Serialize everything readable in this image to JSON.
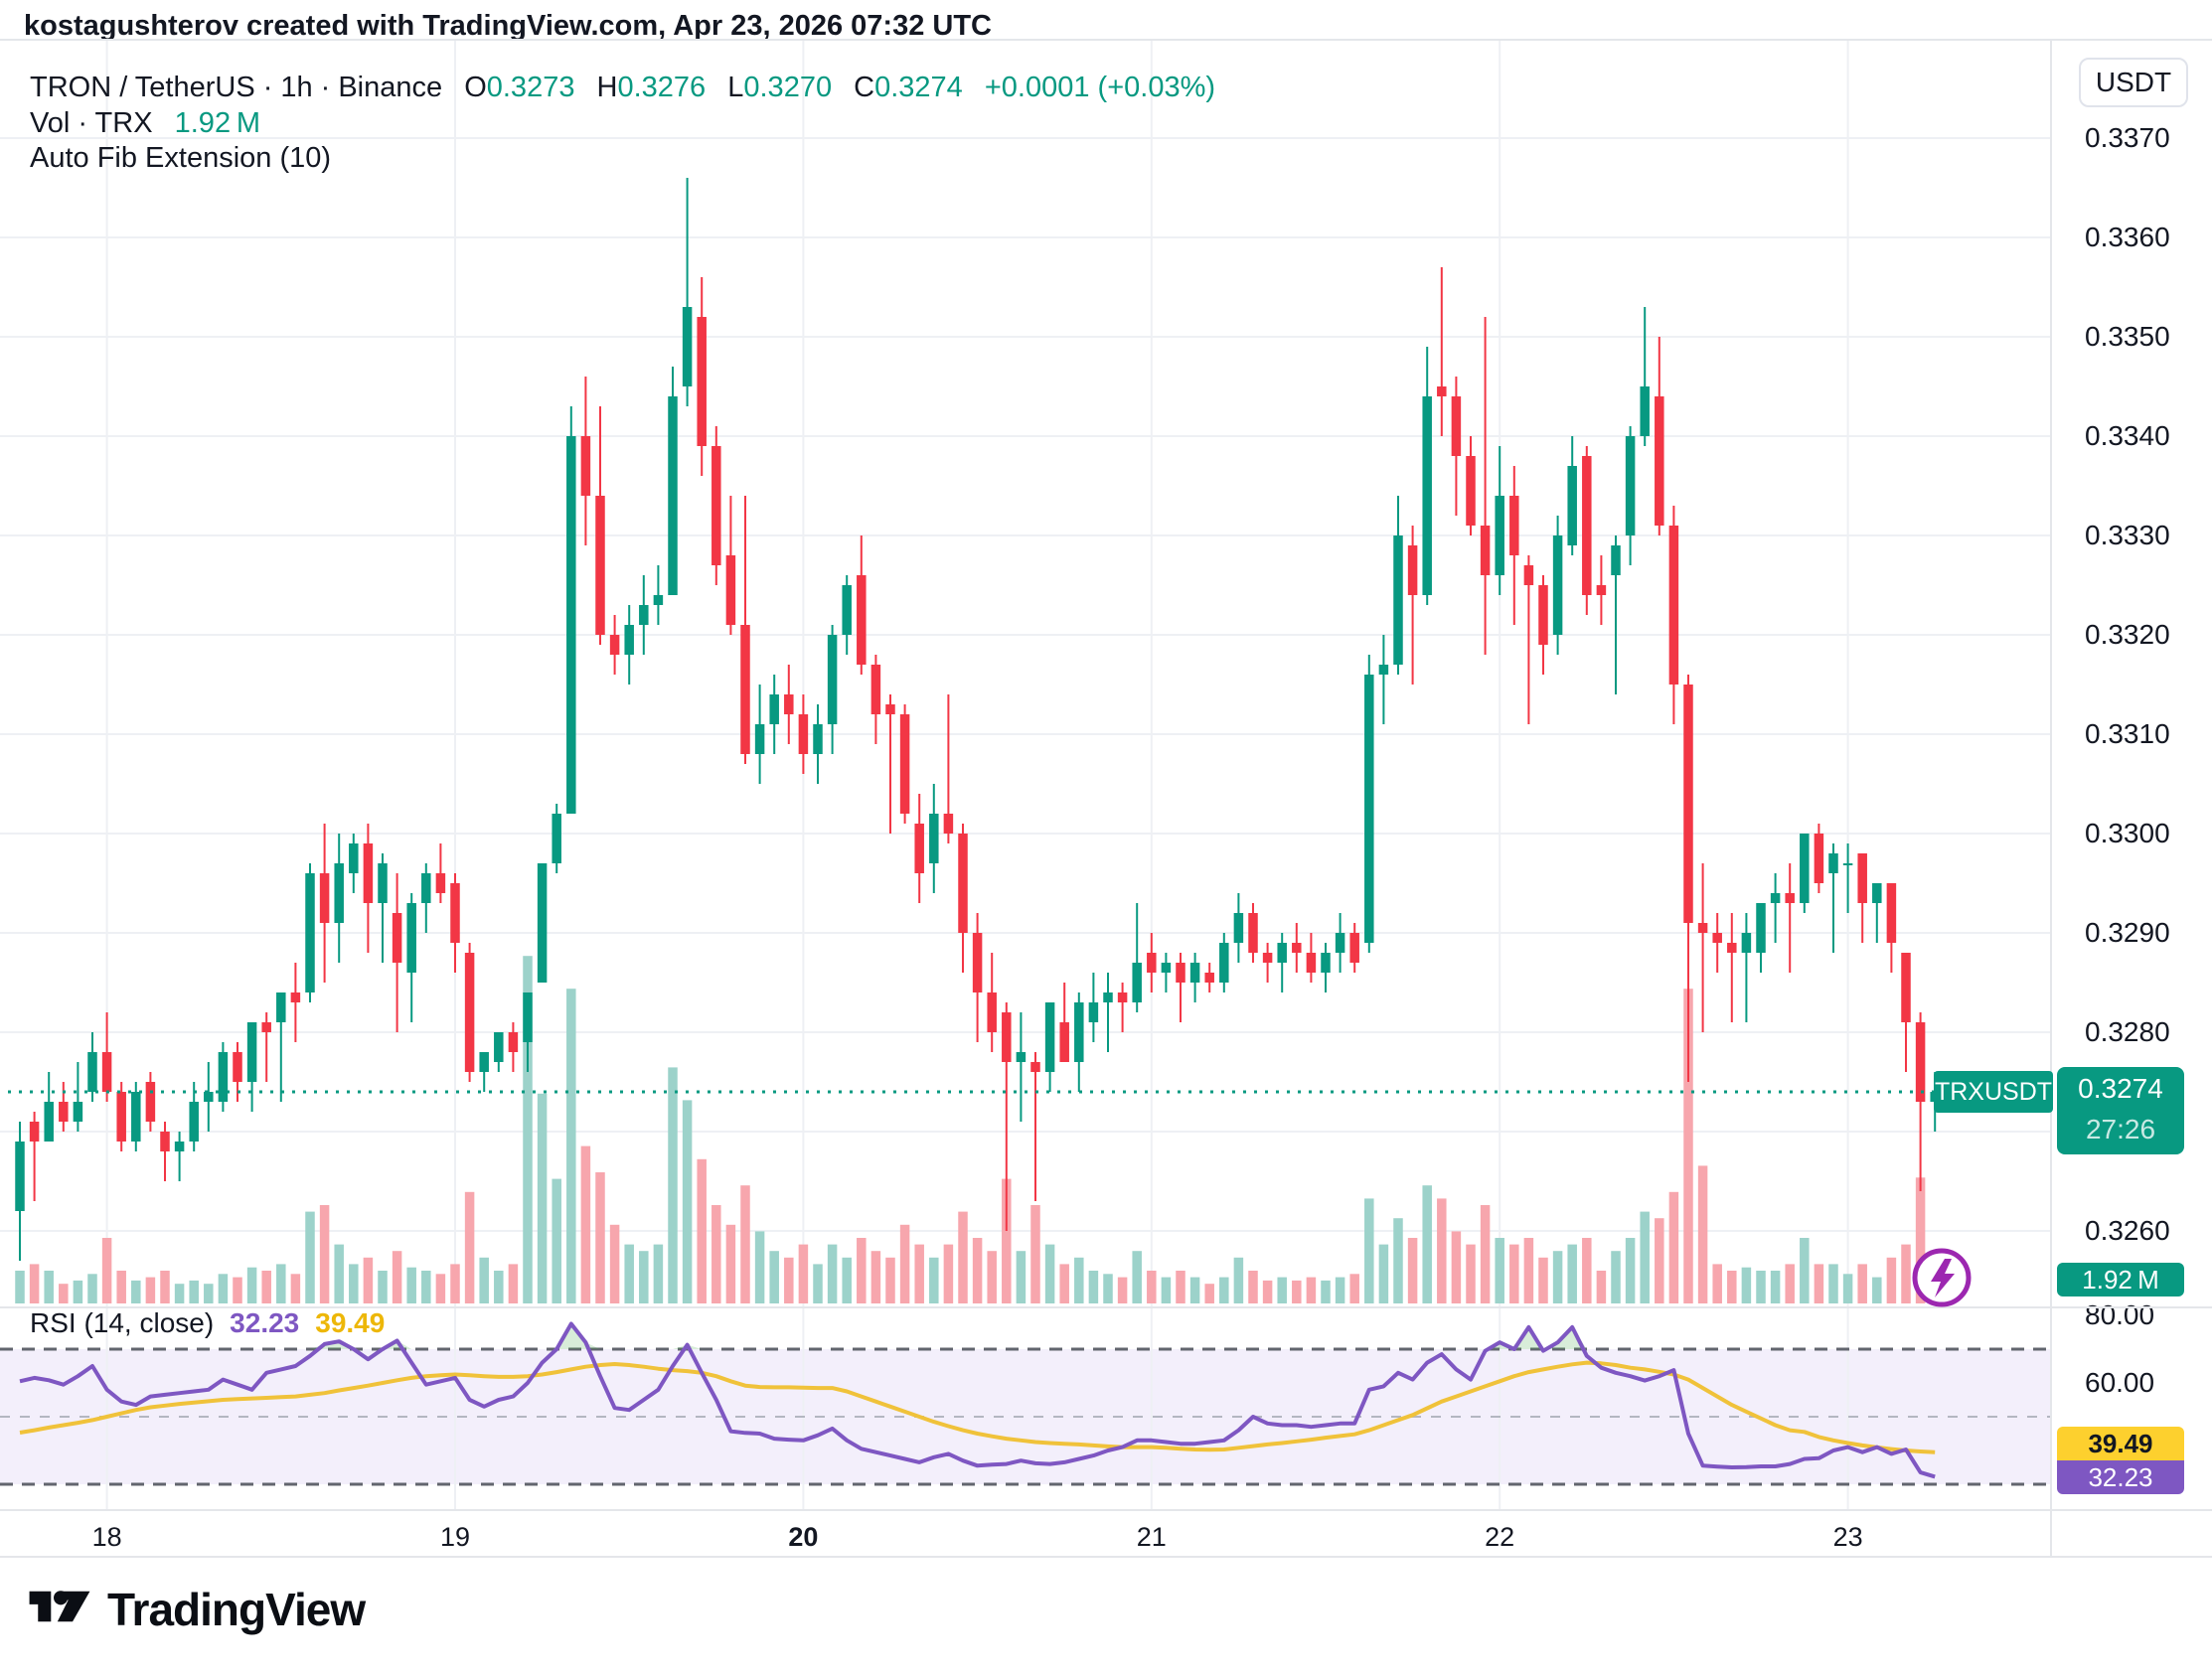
{
  "watermark": "kostagushterov created with TradingView.com, Apr 23, 2026 07:32 UTC",
  "header": {
    "symbol": "TRON / TetherUS",
    "sep": "·",
    "interval": "1h",
    "exchange": "Binance",
    "o_label": "O",
    "o": "0.3273",
    "h_label": "H",
    "h": "0.3276",
    "l_label": "L",
    "l": "0.3270",
    "c_label": "C",
    "c": "0.3274",
    "change": "+0.0001 (+0.03%)"
  },
  "volume_row": {
    "label": "Vol · TRX",
    "value": "1.92 M"
  },
  "fib_row": {
    "label": "Auto Fib Extension (10)"
  },
  "rsi_row": {
    "label": "RSI (14, close)",
    "rsi_value": "32.23",
    "ma_value": "39.49"
  },
  "price_axis": {
    "currency": "USDT",
    "ticks": [
      {
        "label": "0.3370",
        "value": 0.337
      },
      {
        "label": "0.3360",
        "value": 0.336
      },
      {
        "label": "0.3350",
        "value": 0.335
      },
      {
        "label": "0.3340",
        "value": 0.334
      },
      {
        "label": "0.3330",
        "value": 0.333
      },
      {
        "label": "0.3320",
        "value": 0.332
      },
      {
        "label": "0.3310",
        "value": 0.331
      },
      {
        "label": "0.3300",
        "value": 0.33
      },
      {
        "label": "0.3290",
        "value": 0.329
      },
      {
        "label": "0.3280",
        "value": 0.328
      },
      {
        "label": "0.3270",
        "value": 0.327
      },
      {
        "label": "0.3260",
        "value": 0.326
      }
    ],
    "rsi_ticks": [
      {
        "label": "80.00",
        "value": 80
      },
      {
        "label": "60.00",
        "value": 60
      }
    ],
    "price_badge": {
      "price": "0.3274",
      "countdown": "27:26"
    },
    "symbol_badge": "TRXUSDT",
    "volume_badge": "1.92 M",
    "rsi_ma_badge": "39.49",
    "rsi_badge": "32.23"
  },
  "time_axis": {
    "ticks": [
      {
        "label": "18",
        "index": 6,
        "bold": false
      },
      {
        "label": "19",
        "index": 30,
        "bold": false
      },
      {
        "label": "20",
        "index": 54,
        "bold": true
      },
      {
        "label": "21",
        "index": 78,
        "bold": false
      },
      {
        "label": "22",
        "index": 102,
        "bold": false
      },
      {
        "label": "23",
        "index": 126,
        "bold": false
      }
    ]
  },
  "branding": {
    "name": "TradingView"
  },
  "icons": {
    "lightning": "lightning-bolt",
    "logo_mark": "tradingview-mark"
  },
  "colors": {
    "up": "#089981",
    "down": "#f23645",
    "vol_up": "#9cd2ca",
    "vol_down": "#f7a6ad",
    "rsi_line": "#7e57c2",
    "rsi_ma_line": "#f0c23a",
    "badge_yellow": "#fdd02e",
    "badge_purple": "#7e57c2",
    "accent": "#089981",
    "text": "#131722",
    "grid": "#eef0f4",
    "separator": "#e4e6ea",
    "rsi_band": "#f3effb",
    "dash_strong": "#62656e",
    "dash_mid": "#b4b7c1",
    "overbought_fill": "rgba(76,175,80,0.22)"
  },
  "chart_data": {
    "type": "candlestick",
    "title": "TRON / TetherUS 1h Binance",
    "symbol": "TRXUSDT",
    "interval": "1h",
    "ylabel": "Price (USDT)",
    "ylim": [
      0.32527,
      0.33799
    ],
    "current_price": 0.3274,
    "volume_unit": "M TRX",
    "candles_format": [
      "open",
      "high",
      "low",
      "close",
      "volume_M"
    ],
    "candles": [
      [
        0.3262,
        0.3271,
        0.3257,
        0.3269,
        0.5
      ],
      [
        0.3271,
        0.3272,
        0.3263,
        0.3269,
        0.6
      ],
      [
        0.3269,
        0.3276,
        0.3269,
        0.3273,
        0.5
      ],
      [
        0.3273,
        0.3275,
        0.327,
        0.3271,
        0.3
      ],
      [
        0.3271,
        0.3277,
        0.327,
        0.3273,
        0.35
      ],
      [
        0.3274,
        0.328,
        0.3273,
        0.3278,
        0.45
      ],
      [
        0.3278,
        0.3282,
        0.3273,
        0.3274,
        1.0
      ],
      [
        0.3274,
        0.3275,
        0.3268,
        0.3269,
        0.5
      ],
      [
        0.3269,
        0.3275,
        0.3268,
        0.3274,
        0.35
      ],
      [
        0.3275,
        0.3276,
        0.327,
        0.3271,
        0.4
      ],
      [
        0.327,
        0.3271,
        0.3265,
        0.3268,
        0.5
      ],
      [
        0.3268,
        0.327,
        0.3265,
        0.3269,
        0.3
      ],
      [
        0.3269,
        0.3275,
        0.3268,
        0.3273,
        0.35
      ],
      [
        0.3273,
        0.3277,
        0.327,
        0.3274,
        0.3
      ],
      [
        0.3273,
        0.3279,
        0.3272,
        0.3278,
        0.45
      ],
      [
        0.3278,
        0.3279,
        0.3273,
        0.3275,
        0.4
      ],
      [
        0.3275,
        0.3281,
        0.3272,
        0.3281,
        0.55
      ],
      [
        0.3281,
        0.3282,
        0.3275,
        0.328,
        0.5
      ],
      [
        0.3281,
        0.3284,
        0.3273,
        0.3284,
        0.6
      ],
      [
        0.3284,
        0.3287,
        0.3279,
        0.3283,
        0.45
      ],
      [
        0.3284,
        0.3297,
        0.3283,
        0.3296,
        1.4
      ],
      [
        0.3296,
        0.3301,
        0.3285,
        0.3291,
        1.5
      ],
      [
        0.3291,
        0.33,
        0.3287,
        0.3297,
        0.9
      ],
      [
        0.3296,
        0.33,
        0.3294,
        0.3299,
        0.6
      ],
      [
        0.3299,
        0.3301,
        0.3288,
        0.3293,
        0.7
      ],
      [
        0.3293,
        0.3298,
        0.3287,
        0.3297,
        0.5
      ],
      [
        0.3292,
        0.3296,
        0.328,
        0.3287,
        0.8
      ],
      [
        0.3286,
        0.3294,
        0.3281,
        0.3293,
        0.55
      ],
      [
        0.3293,
        0.3297,
        0.329,
        0.3296,
        0.5
      ],
      [
        0.3296,
        0.3299,
        0.3293,
        0.3294,
        0.45
      ],
      [
        0.3295,
        0.3296,
        0.3286,
        0.3289,
        0.6
      ],
      [
        0.3288,
        0.3289,
        0.3275,
        0.3276,
        1.7
      ],
      [
        0.3276,
        0.3278,
        0.3274,
        0.3278,
        0.7
      ],
      [
        0.3277,
        0.328,
        0.3276,
        0.328,
        0.5
      ],
      [
        0.328,
        0.3281,
        0.3276,
        0.3278,
        0.6
      ],
      [
        0.3279,
        0.3284,
        0.3276,
        0.3284,
        5.3
      ],
      [
        0.3285,
        0.3297,
        0.3285,
        0.3297,
        3.2
      ],
      [
        0.3297,
        0.3303,
        0.3296,
        0.3302,
        1.9
      ],
      [
        0.3302,
        0.3343,
        0.3302,
        0.334,
        4.8
      ],
      [
        0.334,
        0.3346,
        0.3329,
        0.3334,
        2.4
      ],
      [
        0.3334,
        0.3343,
        0.3319,
        0.332,
        2.0
      ],
      [
        0.332,
        0.3322,
        0.3316,
        0.3318,
        1.2
      ],
      [
        0.3318,
        0.3323,
        0.3315,
        0.3321,
        0.9
      ],
      [
        0.3321,
        0.3326,
        0.3318,
        0.3323,
        0.8
      ],
      [
        0.3323,
        0.3327,
        0.3321,
        0.3324,
        0.9
      ],
      [
        0.3324,
        0.3347,
        0.3324,
        0.3344,
        3.6
      ],
      [
        0.3345,
        0.3366,
        0.3343,
        0.3353,
        3.1
      ],
      [
        0.3352,
        0.3356,
        0.3336,
        0.3339,
        2.2
      ],
      [
        0.3339,
        0.3341,
        0.3325,
        0.3327,
        1.5
      ],
      [
        0.3328,
        0.3334,
        0.332,
        0.3321,
        1.2
      ],
      [
        0.3321,
        0.3334,
        0.3307,
        0.3308,
        1.8
      ],
      [
        0.3308,
        0.3315,
        0.3305,
        0.3311,
        1.1
      ],
      [
        0.3311,
        0.3316,
        0.3308,
        0.3314,
        0.8
      ],
      [
        0.3314,
        0.3317,
        0.3309,
        0.3312,
        0.7
      ],
      [
        0.3312,
        0.3314,
        0.3306,
        0.3308,
        0.9
      ],
      [
        0.3308,
        0.3313,
        0.3305,
        0.3311,
        0.6
      ],
      [
        0.3311,
        0.3321,
        0.3308,
        0.332,
        0.9
      ],
      [
        0.332,
        0.3326,
        0.3318,
        0.3325,
        0.7
      ],
      [
        0.3326,
        0.333,
        0.3316,
        0.3317,
        1.0
      ],
      [
        0.3317,
        0.3318,
        0.3309,
        0.3312,
        0.8
      ],
      [
        0.3313,
        0.3314,
        0.33,
        0.3312,
        0.7
      ],
      [
        0.3312,
        0.3313,
        0.3301,
        0.3302,
        1.2
      ],
      [
        0.3301,
        0.3304,
        0.3293,
        0.3296,
        0.9
      ],
      [
        0.3297,
        0.3305,
        0.3294,
        0.3302,
        0.7
      ],
      [
        0.3302,
        0.3314,
        0.3299,
        0.33,
        0.9
      ],
      [
        0.33,
        0.3301,
        0.3286,
        0.329,
        1.4
      ],
      [
        0.329,
        0.3292,
        0.3279,
        0.3284,
        1.0
      ],
      [
        0.3284,
        0.3288,
        0.3278,
        0.328,
        0.8
      ],
      [
        0.3282,
        0.3283,
        0.326,
        0.3277,
        1.9
      ],
      [
        0.3277,
        0.3282,
        0.3271,
        0.3278,
        0.8
      ],
      [
        0.3277,
        0.3278,
        0.3263,
        0.3276,
        1.5
      ],
      [
        0.3276,
        0.3283,
        0.3274,
        0.3283,
        0.9
      ],
      [
        0.3281,
        0.3285,
        0.3277,
        0.3277,
        0.6
      ],
      [
        0.3277,
        0.3284,
        0.3274,
        0.3283,
        0.7
      ],
      [
        0.3281,
        0.3286,
        0.3279,
        0.3283,
        0.5
      ],
      [
        0.3283,
        0.3286,
        0.3278,
        0.3284,
        0.45
      ],
      [
        0.3284,
        0.3285,
        0.328,
        0.3283,
        0.4
      ],
      [
        0.3283,
        0.3293,
        0.3282,
        0.3287,
        0.8
      ],
      [
        0.3288,
        0.329,
        0.3284,
        0.3286,
        0.5
      ],
      [
        0.3286,
        0.3288,
        0.3284,
        0.3287,
        0.4
      ],
      [
        0.3287,
        0.3288,
        0.3281,
        0.3285,
        0.5
      ],
      [
        0.3285,
        0.3288,
        0.3283,
        0.3287,
        0.4
      ],
      [
        0.3286,
        0.3287,
        0.3284,
        0.3285,
        0.3
      ],
      [
        0.3285,
        0.329,
        0.3284,
        0.3289,
        0.4
      ],
      [
        0.3289,
        0.3294,
        0.3287,
        0.3292,
        0.7
      ],
      [
        0.3292,
        0.3293,
        0.3287,
        0.3288,
        0.5
      ],
      [
        0.3288,
        0.3289,
        0.3285,
        0.3287,
        0.35
      ],
      [
        0.3287,
        0.329,
        0.3284,
        0.3289,
        0.4
      ],
      [
        0.3289,
        0.3291,
        0.3286,
        0.3288,
        0.35
      ],
      [
        0.3288,
        0.329,
        0.3285,
        0.3286,
        0.4
      ],
      [
        0.3286,
        0.3289,
        0.3284,
        0.3288,
        0.35
      ],
      [
        0.3288,
        0.3292,
        0.3286,
        0.329,
        0.4
      ],
      [
        0.329,
        0.3291,
        0.3286,
        0.3287,
        0.45
      ],
      [
        0.3289,
        0.3318,
        0.3288,
        0.3316,
        1.6
      ],
      [
        0.3316,
        0.332,
        0.3311,
        0.3317,
        0.9
      ],
      [
        0.3317,
        0.3334,
        0.3316,
        0.333,
        1.3
      ],
      [
        0.3329,
        0.3331,
        0.3315,
        0.3324,
        1.0
      ],
      [
        0.3324,
        0.3349,
        0.3323,
        0.3344,
        1.8
      ],
      [
        0.3345,
        0.3357,
        0.334,
        0.3344,
        1.6
      ],
      [
        0.3344,
        0.3346,
        0.3332,
        0.3338,
        1.1
      ],
      [
        0.3338,
        0.334,
        0.333,
        0.3331,
        0.9
      ],
      [
        0.3331,
        0.3352,
        0.3318,
        0.3326,
        1.5
      ],
      [
        0.3326,
        0.3339,
        0.3324,
        0.3334,
        1.0
      ],
      [
        0.3334,
        0.3337,
        0.3321,
        0.3328,
        0.9
      ],
      [
        0.3327,
        0.3328,
        0.3311,
        0.3325,
        1.0
      ],
      [
        0.3325,
        0.3326,
        0.3316,
        0.3319,
        0.7
      ],
      [
        0.332,
        0.3332,
        0.3318,
        0.333,
        0.8
      ],
      [
        0.3329,
        0.334,
        0.3328,
        0.3337,
        0.9
      ],
      [
        0.3338,
        0.3339,
        0.3322,
        0.3324,
        1.0
      ],
      [
        0.3325,
        0.3328,
        0.3321,
        0.3324,
        0.5
      ],
      [
        0.3326,
        0.333,
        0.3314,
        0.3329,
        0.8
      ],
      [
        0.333,
        0.3341,
        0.3327,
        0.334,
        1.0
      ],
      [
        0.334,
        0.3353,
        0.3339,
        0.3345,
        1.4
      ],
      [
        0.3344,
        0.335,
        0.333,
        0.3331,
        1.3
      ],
      [
        0.3331,
        0.3333,
        0.3311,
        0.3315,
        1.7
      ],
      [
        0.3315,
        0.3316,
        0.3275,
        0.3291,
        4.8
      ],
      [
        0.3291,
        0.3297,
        0.328,
        0.329,
        2.1
      ],
      [
        0.329,
        0.3292,
        0.3286,
        0.3289,
        0.6
      ],
      [
        0.3289,
        0.3292,
        0.3281,
        0.3288,
        0.5
      ],
      [
        0.3288,
        0.3292,
        0.3281,
        0.329,
        0.55
      ],
      [
        0.3288,
        0.3293,
        0.3286,
        0.3293,
        0.5
      ],
      [
        0.3293,
        0.3296,
        0.3289,
        0.3294,
        0.5
      ],
      [
        0.3294,
        0.3297,
        0.3286,
        0.3293,
        0.6
      ],
      [
        0.3293,
        0.33,
        0.3292,
        0.33,
        1.0
      ],
      [
        0.33,
        0.3301,
        0.3294,
        0.3295,
        0.6
      ],
      [
        0.3296,
        0.3299,
        0.3288,
        0.3298,
        0.6
      ],
      [
        0.3297,
        0.3299,
        0.3292,
        0.3297,
        0.45
      ],
      [
        0.3298,
        0.3298,
        0.3289,
        0.3293,
        0.6
      ],
      [
        0.3293,
        0.3295,
        0.3289,
        0.3295,
        0.4
      ],
      [
        0.3295,
        0.3295,
        0.3286,
        0.3289,
        0.7
      ],
      [
        0.3288,
        0.3288,
        0.3276,
        0.3281,
        0.9
      ],
      [
        0.3281,
        0.3282,
        0.3264,
        0.3273,
        1.92
      ],
      [
        0.3273,
        0.3276,
        0.327,
        0.3274,
        0.2
      ]
    ],
    "rsi": {
      "period": 14,
      "overbought": 70,
      "mid": 50,
      "oversold": 30,
      "last_value": 32.23,
      "last_ma": 39.49,
      "values": [
        60.5,
        61.5,
        60.8,
        59.5,
        62,
        65,
        58,
        54.5,
        53.5,
        56,
        56.5,
        57,
        57.5,
        58,
        61,
        59.5,
        58,
        63,
        64,
        65,
        68,
        71.5,
        72.3,
        70,
        67,
        70,
        72.5,
        66,
        59.5,
        60.5,
        61.5,
        55,
        53,
        55,
        56,
        60,
        66,
        70,
        77.5,
        72,
        62,
        52.6,
        52,
        55,
        58,
        65,
        71.3,
        63,
        55,
        45.7,
        45.2,
        45,
        43.5,
        43.2,
        43,
        44.5,
        46.5,
        43,
        40.5,
        39.5,
        38.5,
        37.5,
        36.5,
        38,
        39,
        37,
        35.5,
        35.8,
        36,
        37,
        36.2,
        36,
        36.5,
        37.5,
        38.5,
        40,
        41,
        43,
        43,
        42.5,
        42,
        42,
        42.5,
        43,
        46,
        50,
        48,
        47.5,
        47.5,
        47,
        47.5,
        48,
        48,
        58,
        59,
        63,
        61,
        66,
        68.5,
        64,
        61,
        69.5,
        72,
        70,
        76.5,
        69.5,
        72,
        76.5,
        68,
        64.5,
        63,
        62,
        60.7,
        62,
        63.8,
        45,
        35.5,
        35.2,
        35,
        35.1,
        35.3,
        35.3,
        36,
        37.5,
        37.7,
        40,
        41,
        39.5,
        41,
        39,
        40.3,
        33.5,
        32.23
      ],
      "ma": [
        45.3,
        46,
        46.8,
        47.5,
        48.2,
        49,
        50,
        51,
        52,
        52.8,
        53.3,
        53.8,
        54.2,
        54.6,
        55,
        55.2,
        55.4,
        55.6,
        55.8,
        56,
        56.5,
        57,
        57.8,
        58.5,
        59.2,
        60,
        60.8,
        61.5,
        62,
        62.3,
        62.5,
        62.3,
        62,
        61.8,
        61.8,
        62,
        62.5,
        63.2,
        64,
        64.8,
        65.3,
        65.6,
        65.3,
        64.8,
        64.2,
        63.8,
        63.5,
        63,
        62,
        60.5,
        59.2,
        58.8,
        58.7,
        58.7,
        58.6,
        58.5,
        58.5,
        57.5,
        56,
        54.5,
        53,
        51.5,
        50,
        48.5,
        47.2,
        46,
        45,
        44.2,
        43.5,
        43,
        42.5,
        42.2,
        42,
        41.8,
        41.5,
        41.2,
        41,
        41,
        41,
        40.8,
        40.5,
        40.3,
        40.2,
        40.3,
        40.8,
        41.3,
        41.8,
        42.2,
        42.7,
        43.2,
        43.8,
        44.3,
        44.8,
        46,
        47.5,
        49,
        50.5,
        52.5,
        54.5,
        56,
        57.5,
        59,
        60.5,
        62,
        63.2,
        64,
        64.8,
        65.5,
        66,
        65.8,
        65.3,
        64.5,
        64,
        63.3,
        62.5,
        61,
        58.5,
        56,
        53.5,
        51.5,
        49.5,
        47.5,
        46,
        45.5,
        44,
        43,
        42.2,
        41.5,
        40.9,
        40.4,
        40,
        39.7,
        39.49
      ]
    }
  }
}
